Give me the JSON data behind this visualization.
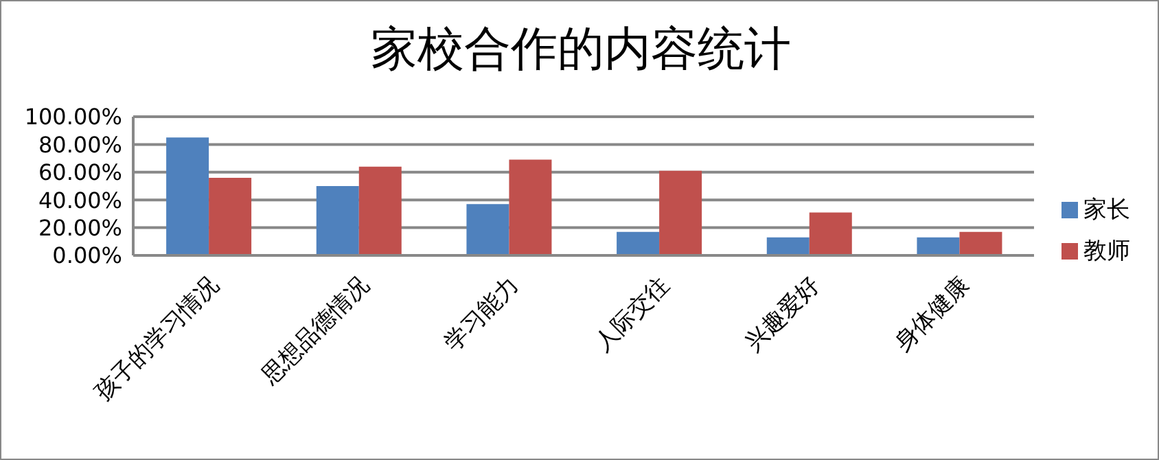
{
  "chart_data": {
    "type": "bar",
    "title": "家校合作的内容统计",
    "categories": [
      "孩子的学习情况",
      "思想品德情况",
      "学习能力",
      "人际交往",
      "兴趣爱好",
      "身体健康"
    ],
    "series": [
      {
        "name": "家长",
        "color": "#4f81bd",
        "values": [
          85,
          50,
          37,
          17,
          13,
          13
        ]
      },
      {
        "name": "教师",
        "color": "#c0504d",
        "values": [
          56,
          64,
          69,
          61,
          31,
          17
        ]
      }
    ],
    "ylim": [
      0,
      100
    ],
    "yticks": [
      {
        "value": 0,
        "label": "0.00%"
      },
      {
        "value": 20,
        "label": "20.00%"
      },
      {
        "value": 40,
        "label": "40.00%"
      },
      {
        "value": 60,
        "label": "60.00%"
      },
      {
        "value": 80,
        "label": "80.00%"
      },
      {
        "value": 100,
        "label": "100.00%"
      }
    ],
    "grid": "y",
    "legend": "right"
  }
}
